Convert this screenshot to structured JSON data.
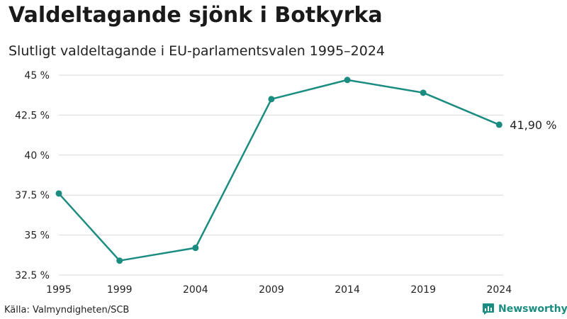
{
  "header": {
    "title": "Valdeltagande sjönk i Botkyrka",
    "subtitle": "Slutligt valdeltagande i EU-parlamentsvalen 1995–2024"
  },
  "footer": {
    "source": "Källa: Valmyndigheten/SCB",
    "brand": "Newsworthy"
  },
  "colors": {
    "line": "#1a8c80",
    "grid": "#d9d9d9",
    "text": "#222222"
  },
  "chart_data": {
    "type": "line",
    "title": "Valdeltagande sjönk i Botkyrka",
    "subtitle": "Slutligt valdeltagande i EU-parlamentsvalen 1995–2024",
    "x": [
      1995,
      1999,
      2004,
      2009,
      2014,
      2019,
      2024
    ],
    "series": [
      {
        "values": [
          37.6,
          33.4,
          34.2,
          43.5,
          44.7,
          43.9,
          41.9
        ]
      }
    ],
    "xticks": [
      "1995",
      "1999",
      "2004",
      "2009",
      "2014",
      "2019",
      "2024"
    ],
    "yticks": [
      32.5,
      35,
      37.5,
      40,
      42.5,
      45
    ],
    "ytick_labels": [
      "32.5 %",
      "35 %",
      "37.5 %",
      "40 %",
      "42.5 %",
      "45 %"
    ],
    "ylim": [
      32.5,
      45
    ],
    "xlim": [
      1995,
      2028
    ],
    "end_label": "41,90 %",
    "grid": true,
    "legend": "none"
  }
}
